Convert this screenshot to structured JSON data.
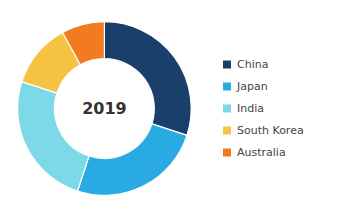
{
  "chart_data": {
    "type": "donut",
    "categories": [
      "China",
      "Japan",
      "India",
      "South Korea",
      "Australia"
    ],
    "values": [
      30,
      25,
      25,
      12,
      8
    ],
    "colors": [
      "#1b3f6b",
      "#29aae2",
      "#7dd9e8",
      "#f5c242",
      "#f47a20"
    ],
    "annotations": [
      "2019"
    ],
    "legend": "right"
  }
}
